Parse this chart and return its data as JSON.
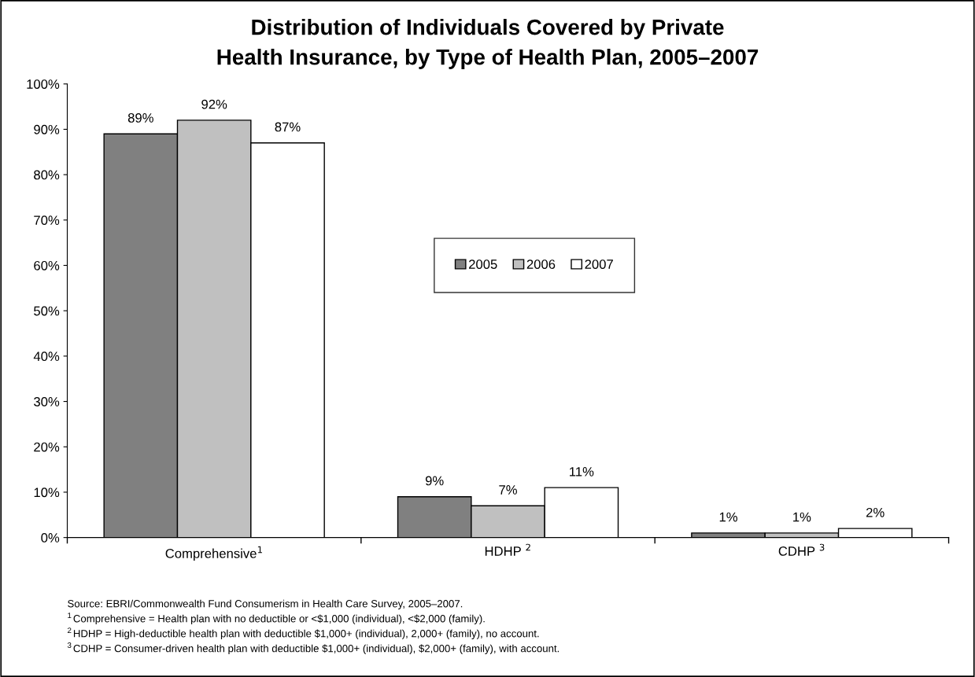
{
  "chart_data": {
    "type": "bar",
    "title": "Distribution of Individuals Covered by Private\nHealth Insurance, by Type of Health Plan, 2005–2007",
    "categories": [
      "Comprehensive$^{1}$",
      "HDHP $^{2}$",
      "CDHP $^{3}$"
    ],
    "series": [
      {
        "name": "2005",
        "color": "#808080",
        "values": [
          89,
          9,
          1
        ],
        "value_labels": [
          "89%",
          "9%",
          "1%"
        ]
      },
      {
        "name": "2006",
        "color": "#c0c0c0",
        "values": [
          92,
          7,
          1
        ],
        "value_labels": [
          "92%",
          "7%",
          "1%"
        ]
      },
      {
        "name": "2007",
        "color": "#ffffff",
        "values": [
          87,
          11,
          2
        ],
        "value_labels": [
          "87%",
          "11%",
          "2%"
        ]
      }
    ],
    "ylim": [
      0,
      100
    ],
    "yticks": [
      {
        "value": 0,
        "label": "0%"
      },
      {
        "value": 10,
        "label": "10%"
      },
      {
        "value": 20,
        "label": "20%"
      },
      {
        "value": 30,
        "label": "30%"
      },
      {
        "value": 40,
        "label": "40%"
      },
      {
        "value": 50,
        "label": "50%"
      },
      {
        "value": 60,
        "label": "60%"
      },
      {
        "value": 70,
        "label": "70%"
      },
      {
        "value": 80,
        "label": "80%"
      },
      {
        "value": 90,
        "label": "90%"
      },
      {
        "value": 100,
        "label": "100%"
      }
    ],
    "grid": false,
    "legend": "center",
    "annotations": [
      "Source: EBRI/Commonwealth Fund Consumerism in Health Care Survey, 2005–2007.",
      "$^{1}$ Comprehensive = Health plan with no deductible or <$1,000 (individual), <$2,000 (family).",
      "$^{2}$ HDHP = High-deductible health plan with deductible $1,000+ (individual), 2,000+ (family), no account.",
      "$^{3}$ CDHP = Consumer-driven health plan with deductible $1,000+ (individual), $2,000+ (family), with account."
    ]
  }
}
